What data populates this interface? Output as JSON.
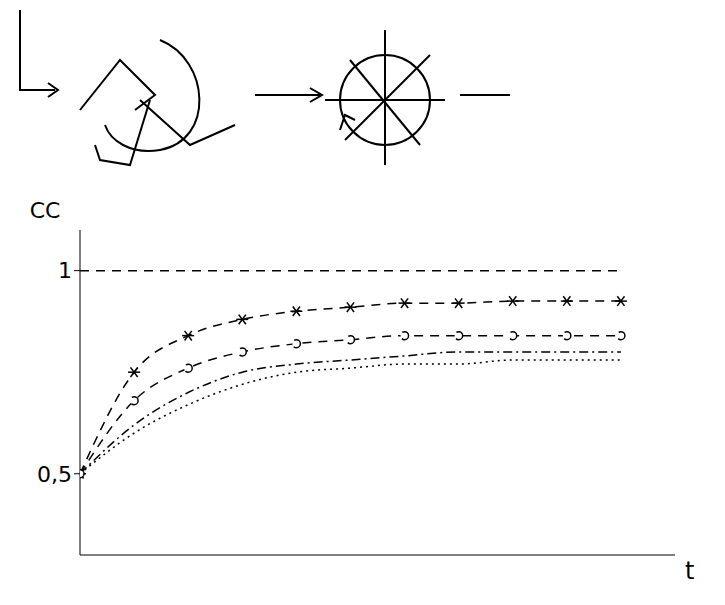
{
  "chart_data": {
    "type": "line",
    "x_label": "t",
    "y_label": "CC",
    "x": [
      0,
      1,
      2,
      3,
      4,
      5,
      6,
      7,
      8,
      9,
      10
    ],
    "xlim": [
      0,
      11
    ],
    "xticks": [],
    "ylim": [
      0.3,
      1.1
    ],
    "yticks": [
      {
        "value": 0.5,
        "label": "0,5"
      },
      1
    ],
    "tick_labels": "y",
    "series": [
      {
        "color": "#000000",
        "marker": "none",
        "line_style": "dashed",
        "values": [
          1,
          1,
          1,
          1,
          1,
          1,
          1,
          1,
          1,
          1,
          1
        ]
      },
      {
        "color": "#000000",
        "marker": "star",
        "line_style": "dashed",
        "values": [
          0.5,
          0.75,
          0.84,
          0.88,
          0.9,
          0.91,
          0.92,
          0.92,
          0.925,
          0.925,
          0.925
        ]
      },
      {
        "color": "#000000",
        "marker": "circle",
        "line_style": "dashed",
        "values": [
          0.5,
          0.68,
          0.76,
          0.8,
          0.82,
          0.83,
          0.84,
          0.84,
          0.84,
          0.84,
          0.84
        ]
      },
      {
        "color": "#000000",
        "marker": "none",
        "line_style": "dashdot",
        "values": [
          0.5,
          0.62,
          0.7,
          0.75,
          0.77,
          0.78,
          0.79,
          0.8,
          0.8,
          0.8,
          0.8
        ]
      },
      {
        "color": "#000000",
        "marker": "none",
        "line_style": "dotted",
        "values": [
          0.5,
          0.6,
          0.67,
          0.72,
          0.75,
          0.76,
          0.77,
          0.77,
          0.78,
          0.78,
          0.78
        ]
      }
    ]
  }
}
